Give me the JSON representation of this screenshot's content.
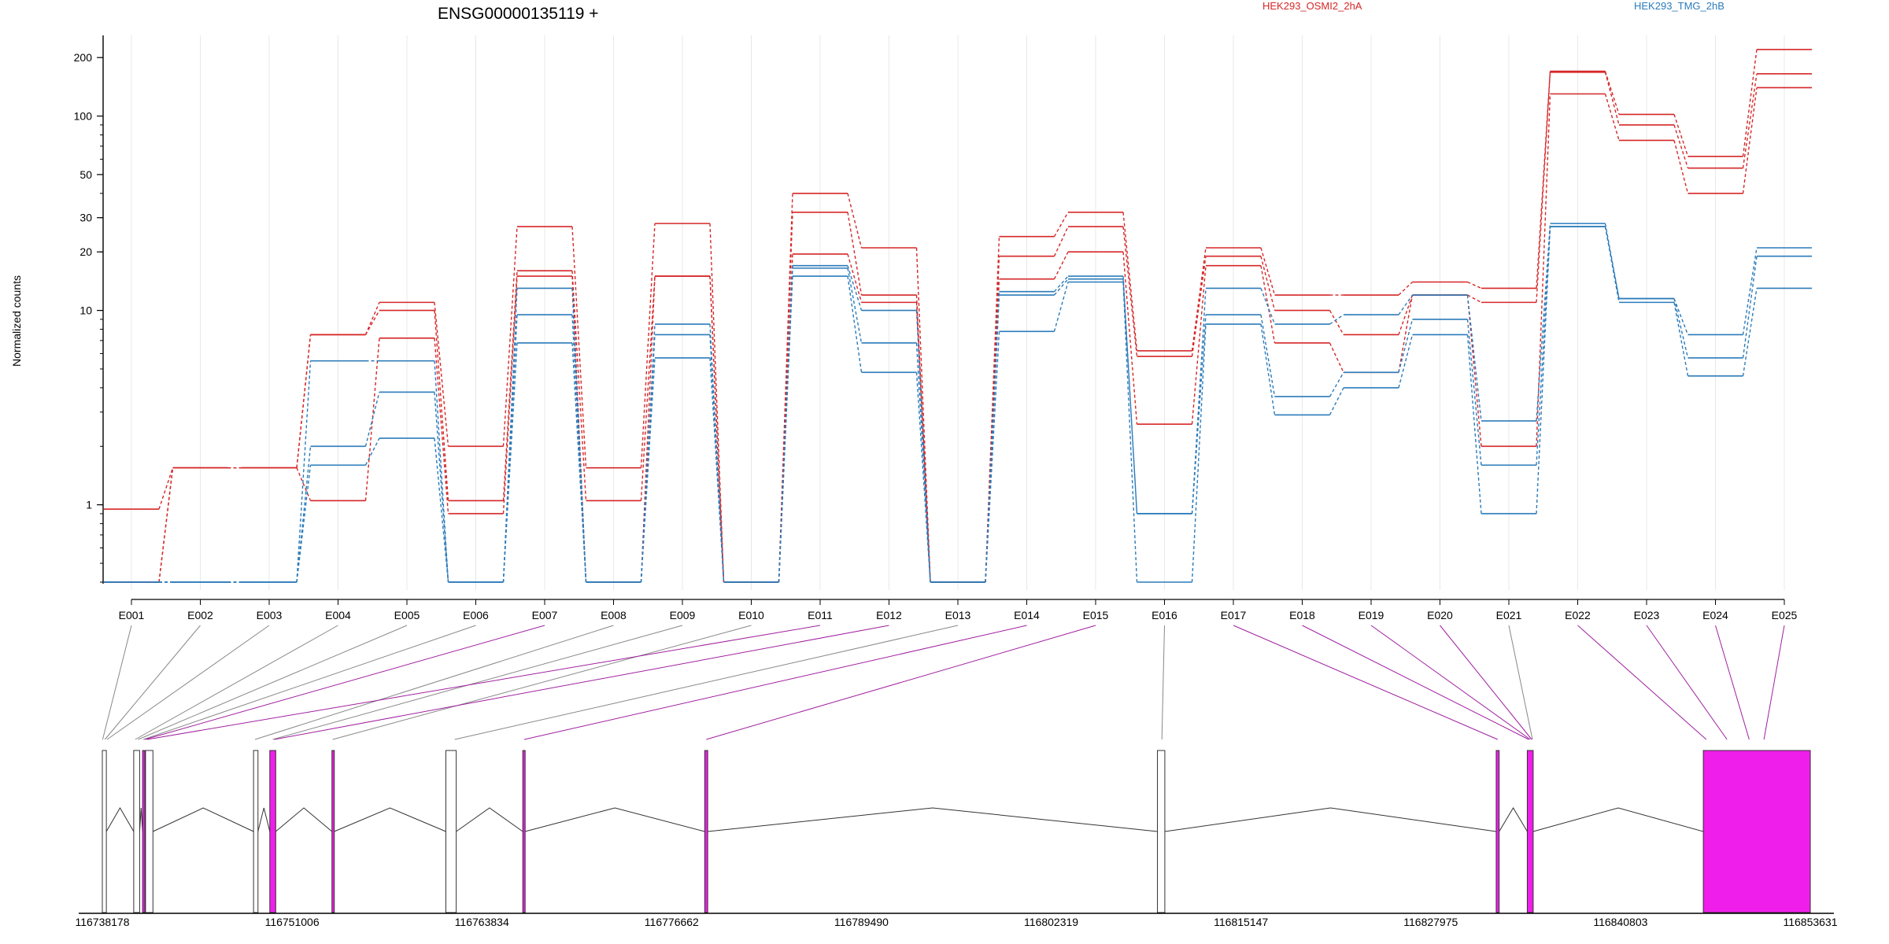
{
  "page_title": "",
  "chart_data": {
    "type": "line",
    "title": "ENSG00000135119 +",
    "ylabel": "Normalized counts",
    "xlabel": "",
    "y_scale": "log",
    "ylim": [
      0.4,
      260
    ],
    "y_ticks": [
      1,
      10,
      20,
      30,
      50,
      100,
      200
    ],
    "grid": "vertical lines at exon centers, light gray",
    "legend": [
      {
        "name": "HEK293_OSMI2_2hA",
        "color": "#d62728",
        "position": "top"
      },
      {
        "name": "HEK293_TMG_2hB",
        "color": "#2b7bba",
        "position": "top-right"
      }
    ],
    "categories": [
      "E001",
      "E002",
      "E003",
      "E004",
      "E005",
      "E006",
      "E007",
      "E008",
      "E009",
      "E010",
      "E011",
      "E012",
      "E013",
      "E014",
      "E015",
      "E016",
      "E017",
      "E018",
      "E019",
      "E020",
      "E021",
      "E022",
      "E023",
      "E024",
      "E025"
    ],
    "series": [
      {
        "group": "HEK293_OSMI2_2hA",
        "color": "#d62728",
        "values": [
          0.95,
          1.55,
          1.55,
          7.5,
          11,
          2.0,
          27,
          1.55,
          28,
          0.4,
          40,
          21,
          0.4,
          24,
          32,
          6.2,
          21,
          12,
          12,
          14,
          13,
          170,
          102,
          62,
          220
        ]
      },
      {
        "group": "HEK293_OSMI2_2hA",
        "color": "#d62728",
        "values": [
          0.4,
          1.55,
          1.55,
          7.5,
          10,
          1.05,
          16,
          1.05,
          15,
          0.4,
          32,
          12,
          0.4,
          19,
          27,
          5.8,
          19,
          10,
          7.5,
          12,
          11,
          168,
          90,
          54,
          165
        ]
      },
      {
        "group": "HEK293_OSMI2_2hA",
        "color": "#d62728",
        "values": [
          0.4,
          1.55,
          1.55,
          1.05,
          7.2,
          0.9,
          15,
          0.4,
          15,
          0.4,
          19.5,
          11,
          0.4,
          14.5,
          20,
          2.6,
          17,
          6.8,
          4.8,
          12,
          2.0,
          130,
          75,
          40,
          140
        ]
      },
      {
        "group": "HEK293_TMG_2hB",
        "color": "#2b7bba",
        "values": [
          0.4,
          0.4,
          0.4,
          5.5,
          5.5,
          0.4,
          13,
          0.4,
          8.5,
          0.4,
          17,
          10,
          0.4,
          12.5,
          15,
          0.9,
          13,
          8.5,
          9.5,
          12,
          2.7,
          28,
          11.5,
          7.5,
          21
        ]
      },
      {
        "group": "HEK293_TMG_2hB",
        "color": "#2b7bba",
        "values": [
          0.4,
          0.4,
          0.4,
          2.0,
          3.8,
          0.4,
          9.5,
          0.4,
          7.5,
          0.4,
          16.5,
          6.8,
          0.4,
          12,
          14.5,
          0.9,
          9.5,
          3.6,
          4.8,
          9.0,
          1.6,
          27,
          11.5,
          5.7,
          19
        ]
      },
      {
        "group": "HEK293_TMG_2hB",
        "color": "#2b7bba",
        "values": [
          0.4,
          0.4,
          0.4,
          1.6,
          2.2,
          0.4,
          6.8,
          0.4,
          5.7,
          0.4,
          15,
          4.8,
          0.4,
          7.8,
          14,
          0.4,
          8.5,
          2.9,
          4.0,
          7.5,
          0.9,
          27,
          11,
          4.6,
          13
        ]
      }
    ],
    "genomic_axis": {
      "tick_labels": [
        "116738178",
        "116751006",
        "116763834",
        "116776662",
        "116789490",
        "116802319",
        "116815147",
        "116827975",
        "116840803",
        "116853631"
      ],
      "range": [
        116738178,
        116853631
      ]
    },
    "exon_track": [
      {
        "start": 116738178,
        "end": 116738450,
        "highlight": false
      },
      {
        "start": 116740300,
        "end": 116740700,
        "highlight": false
      },
      {
        "start": 116740900,
        "end": 116741050,
        "highlight": true
      },
      {
        "start": 116741100,
        "end": 116741600,
        "highlight": false
      },
      {
        "start": 116748400,
        "end": 116748700,
        "highlight": false
      },
      {
        "start": 116749500,
        "end": 116749900,
        "highlight": true
      },
      {
        "start": 116753700,
        "end": 116753850,
        "highlight": true
      },
      {
        "start": 116761400,
        "end": 116762100,
        "highlight": false
      },
      {
        "start": 116766600,
        "end": 116766750,
        "highlight": true
      },
      {
        "start": 116778900,
        "end": 116779100,
        "highlight": true
      },
      {
        "start": 116809500,
        "end": 116810000,
        "highlight": false
      },
      {
        "start": 116832400,
        "end": 116832600,
        "highlight": true
      },
      {
        "start": 116834500,
        "end": 116834900,
        "highlight": true
      },
      {
        "start": 116846400,
        "end": 116853631,
        "highlight": true
      }
    ],
    "exon_links": [
      {
        "exon": "E001",
        "target": 116738200,
        "highlight": false
      },
      {
        "exon": "E002",
        "target": 116738350,
        "highlight": false
      },
      {
        "exon": "E003",
        "target": 116738500,
        "highlight": false
      },
      {
        "exon": "E004",
        "target": 116740400,
        "highlight": false
      },
      {
        "exon": "E005",
        "target": 116740600,
        "highlight": false
      },
      {
        "exon": "E006",
        "target": 116740950,
        "highlight": false
      },
      {
        "exon": "E007",
        "target": 116741050,
        "highlight": true
      },
      {
        "exon": "E008",
        "target": 116748500,
        "highlight": false
      },
      {
        "exon": "E009",
        "target": 116749700,
        "highlight": false
      },
      {
        "exon": "E010",
        "target": 116753750,
        "highlight": false
      },
      {
        "exon": "E011",
        "target": 116741200,
        "highlight": true
      },
      {
        "exon": "E012",
        "target": 116749800,
        "highlight": true
      },
      {
        "exon": "E013",
        "target": 116762000,
        "highlight": false
      },
      {
        "exon": "E014",
        "target": 116766700,
        "highlight": true
      },
      {
        "exon": "E015",
        "target": 116779000,
        "highlight": true
      },
      {
        "exon": "E016",
        "target": 116809800,
        "highlight": false
      },
      {
        "exon": "E017",
        "target": 116832500,
        "highlight": true
      },
      {
        "exon": "E018",
        "target": 116834600,
        "highlight": true
      },
      {
        "exon": "E019",
        "target": 116834700,
        "highlight": true
      },
      {
        "exon": "E020",
        "target": 116834800,
        "highlight": true
      },
      {
        "exon": "E021",
        "target": 116834850,
        "highlight": false
      },
      {
        "exon": "E022",
        "target": 116846600,
        "highlight": true
      },
      {
        "exon": "E023",
        "target": 116848000,
        "highlight": true
      },
      {
        "exon": "E024",
        "target": 116849500,
        "highlight": true
      },
      {
        "exon": "E025",
        "target": 116850500,
        "highlight": true
      }
    ],
    "colors": {
      "highlight_exon": "#f01eea",
      "highlight_link": "#a020a0",
      "plain_exon": "#ffffff",
      "plain_link": "#888888",
      "grid": "#e8e8e8"
    }
  }
}
